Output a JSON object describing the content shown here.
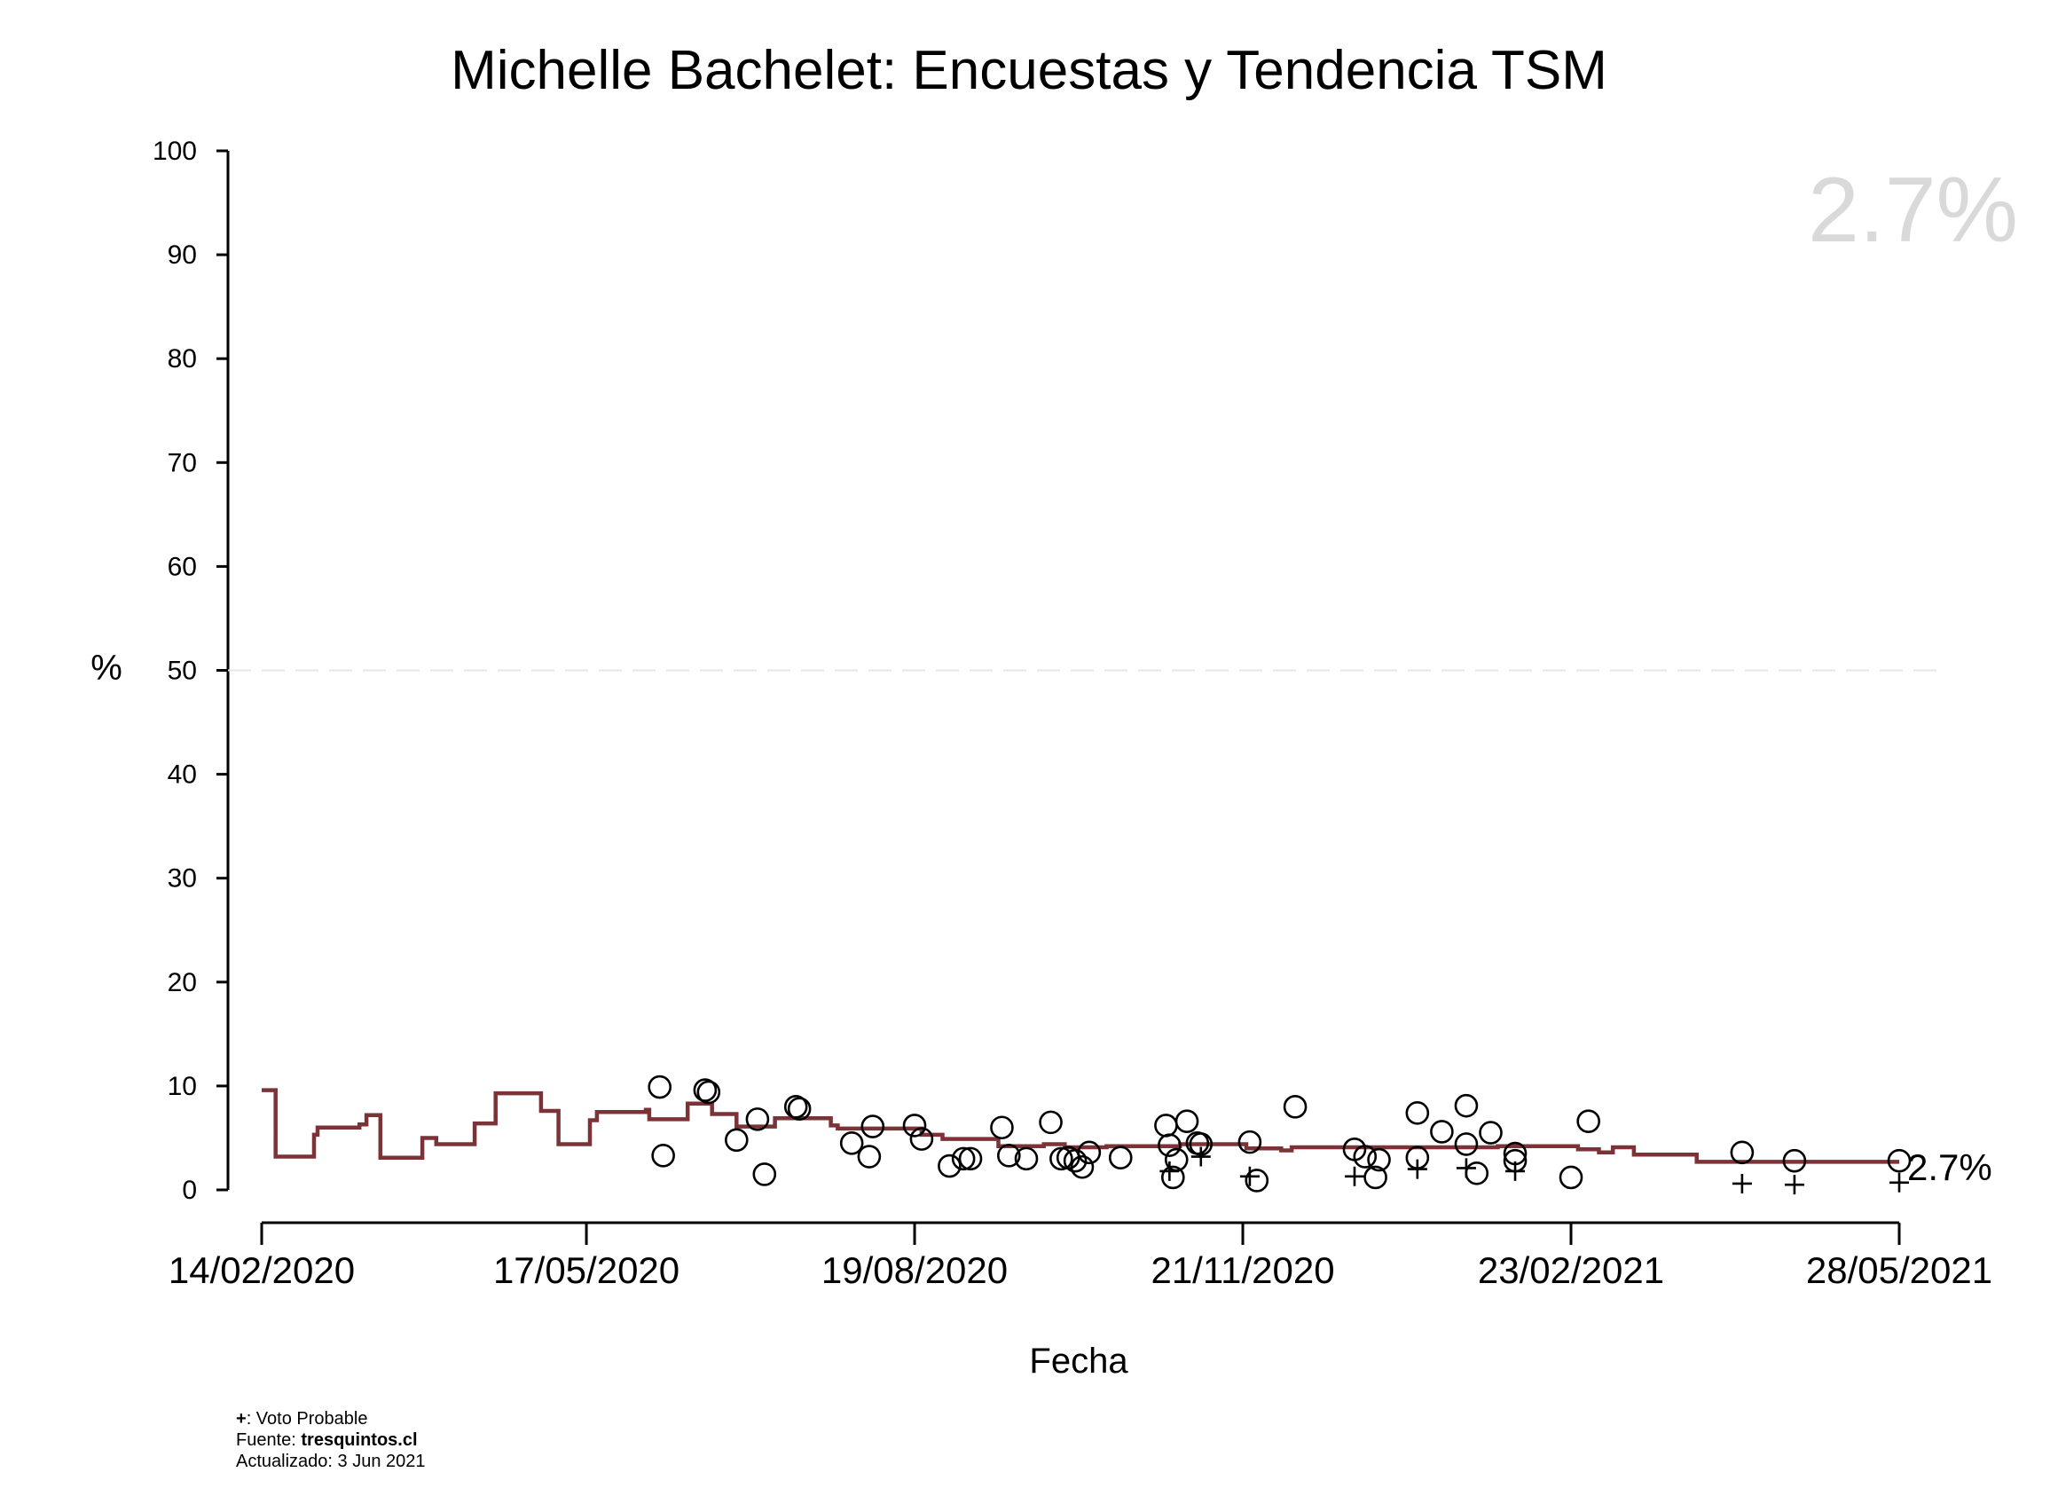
{
  "chart_data": {
    "type": "scatter",
    "title": "Michelle Bachelet: Encuestas y Tendencia TSM",
    "xlabel": "Fecha",
    "ylabel": "%",
    "ylim": [
      0,
      100
    ],
    "yticks": [
      0,
      10,
      20,
      30,
      40,
      50,
      60,
      70,
      80,
      90,
      100
    ],
    "reference_line": 50,
    "xlim": [
      "2020-02-14",
      "2021-05-28"
    ],
    "xtick_labels": [
      "14/02/2020",
      "17/05/2020",
      "19/08/2020",
      "21/11/2020",
      "23/02/2021",
      "28/05/2021"
    ],
    "latest_value_label": "2.7%",
    "end_label": "2.7%",
    "colors": {
      "trend": "#7b3338",
      "points": "#000000",
      "headline": "#d9d9d9",
      "reference": "#e6e6e6"
    },
    "series": [
      {
        "type": "step",
        "points": [
          [
            "2020-02-14",
            9.6
          ],
          [
            "2020-02-18",
            3.2
          ],
          [
            "2020-02-29",
            5.3
          ],
          [
            "2020-03-01",
            6.0
          ],
          [
            "2020-03-13",
            6.3
          ],
          [
            "2020-03-15",
            7.2
          ],
          [
            "2020-03-19",
            3.1
          ],
          [
            "2020-03-31",
            5.0
          ],
          [
            "2020-04-04",
            4.4
          ],
          [
            "2020-04-15",
            6.4
          ],
          [
            "2020-04-21",
            9.3
          ],
          [
            "2020-05-04",
            7.6
          ],
          [
            "2020-05-09",
            4.4
          ],
          [
            "2020-05-18",
            6.7
          ],
          [
            "2020-05-20",
            7.5
          ],
          [
            "2020-06-03",
            7.7
          ],
          [
            "2020-06-04",
            6.8
          ],
          [
            "2020-06-15",
            8.3
          ],
          [
            "2020-06-22",
            7.3
          ],
          [
            "2020-06-29",
            6.1
          ],
          [
            "2020-07-10",
            6.9
          ],
          [
            "2020-07-26",
            6.2
          ],
          [
            "2020-07-28",
            5.9
          ],
          [
            "2020-08-21",
            5.3
          ],
          [
            "2020-08-27",
            4.9
          ],
          [
            "2020-09-12",
            4.2
          ],
          [
            "2020-09-25",
            4.4
          ],
          [
            "2020-10-01",
            4.1
          ],
          [
            "2020-10-13",
            4.2
          ],
          [
            "2020-11-03",
            4.4
          ],
          [
            "2020-11-22",
            4.0
          ],
          [
            "2020-12-02",
            3.8
          ],
          [
            "2020-12-05",
            4.1
          ],
          [
            "2021-01-16",
            4.1
          ],
          [
            "2021-02-02",
            4.2
          ],
          [
            "2021-02-25",
            3.9
          ],
          [
            "2021-03-03",
            3.6
          ],
          [
            "2021-03-07",
            4.1
          ],
          [
            "2021-03-13",
            3.4
          ],
          [
            "2021-03-31",
            2.7
          ],
          [
            "2021-05-21",
            2.7
          ],
          [
            "2021-05-28",
            2.7
          ]
        ]
      },
      {
        "name": "",
        "marker": "circle",
        "points": [
          [
            "2020-06-07",
            9.9
          ],
          [
            "2020-06-08",
            3.3
          ],
          [
            "2020-06-20",
            9.6
          ],
          [
            "2020-06-21",
            9.4
          ],
          [
            "2020-06-29",
            4.8
          ],
          [
            "2020-07-05",
            6.8
          ],
          [
            "2020-07-07",
            1.5
          ],
          [
            "2020-07-16",
            8.0
          ],
          [
            "2020-07-17",
            7.8
          ],
          [
            "2020-08-01",
            4.5
          ],
          [
            "2020-08-06",
            3.2
          ],
          [
            "2020-08-07",
            6.1
          ],
          [
            "2020-08-19",
            6.2
          ],
          [
            "2020-08-21",
            4.9
          ],
          [
            "2020-08-29",
            2.3
          ],
          [
            "2020-09-02",
            3.0
          ],
          [
            "2020-09-04",
            3.0
          ],
          [
            "2020-09-13",
            6.0
          ],
          [
            "2020-09-15",
            3.3
          ],
          [
            "2020-09-20",
            3.0
          ],
          [
            "2020-09-27",
            6.5
          ],
          [
            "2020-09-30",
            3.0
          ],
          [
            "2020-10-02",
            3.1
          ],
          [
            "2020-10-04",
            2.8
          ],
          [
            "2020-10-06",
            2.2
          ],
          [
            "2020-10-08",
            3.6
          ],
          [
            "2020-10-17",
            3.1
          ],
          [
            "2020-10-30",
            6.2
          ],
          [
            "2020-10-31",
            4.3
          ],
          [
            "2020-11-01",
            1.2
          ],
          [
            "2020-11-02",
            2.9
          ],
          [
            "2020-11-05",
            6.6
          ],
          [
            "2020-11-08",
            4.5
          ],
          [
            "2020-11-09",
            4.4
          ],
          [
            "2020-11-23",
            4.6
          ],
          [
            "2020-11-25",
            0.9
          ],
          [
            "2020-12-06",
            8.0
          ],
          [
            "2020-12-23",
            3.9
          ],
          [
            "2020-12-26",
            3.2
          ],
          [
            "2020-12-29",
            1.2
          ],
          [
            "2020-12-30",
            2.9
          ],
          [
            "2021-01-10",
            7.4
          ],
          [
            "2021-01-10",
            3.1
          ],
          [
            "2021-01-17",
            5.6
          ],
          [
            "2021-01-24",
            8.1
          ],
          [
            "2021-01-24",
            4.4
          ],
          [
            "2021-01-27",
            1.6
          ],
          [
            "2021-01-31",
            5.5
          ],
          [
            "2021-02-07",
            3.5
          ],
          [
            "2021-02-07",
            2.8
          ],
          [
            "2021-02-23",
            1.2
          ],
          [
            "2021-02-28",
            6.6
          ],
          [
            "2021-04-13",
            3.6
          ],
          [
            "2021-04-28",
            2.8
          ],
          [
            "2021-05-28",
            2.8
          ]
        ]
      },
      {
        "name": "Voto Probable",
        "marker": "plus",
        "points": [
          [
            "2020-10-31",
            1.8
          ],
          [
            "2020-11-09",
            3.2
          ],
          [
            "2020-11-23",
            1.3
          ],
          [
            "2020-12-23",
            1.3
          ],
          [
            "2021-01-10",
            2.0
          ],
          [
            "2021-01-24",
            2.1
          ],
          [
            "2021-02-07",
            1.8
          ],
          [
            "2021-04-13",
            0.6
          ],
          [
            "2021-04-28",
            0.5
          ],
          [
            "2021-05-28",
            0.7
          ]
        ]
      }
    ]
  },
  "footer": {
    "legend_symbol": "+",
    "legend_text": ": Voto Probable",
    "source_prefix": "Fuente: ",
    "source_name": "tresquintos.cl",
    "updated": "Actualizado: 3 Jun 2021"
  }
}
